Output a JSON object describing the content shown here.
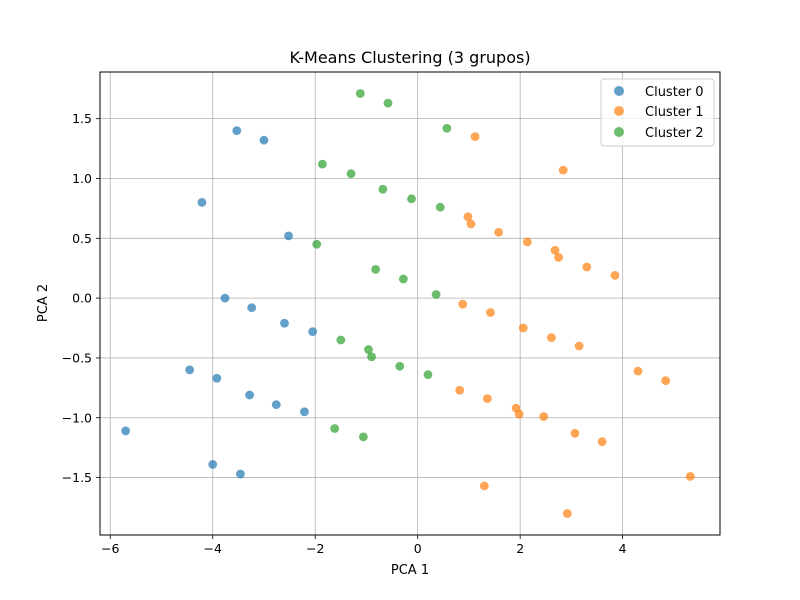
{
  "chart_data": {
    "type": "scatter",
    "title": "K-Means Clustering (3 grupos)",
    "xlabel": "PCA 1",
    "ylabel": "PCA 2",
    "xlim": [
      -6.2,
      5.9
    ],
    "ylim": [
      -1.98,
      1.89
    ],
    "xticks": [
      -6,
      -4,
      -2,
      0,
      2,
      4
    ],
    "yticks": [
      -1.5,
      -1.0,
      -0.5,
      0.0,
      0.5,
      1.0,
      1.5
    ],
    "grid": true,
    "legend_position": "top-right",
    "series": [
      {
        "name": "Cluster 0",
        "color": "#1f77b4",
        "points": [
          [
            -3.53,
            1.4
          ],
          [
            -3.0,
            1.32
          ],
          [
            -4.21,
            0.8
          ],
          [
            -2.52,
            0.52
          ],
          [
            -3.76,
            0.0
          ],
          [
            -3.24,
            -0.08
          ],
          [
            -2.6,
            -0.21
          ],
          [
            -2.05,
            -0.28
          ],
          [
            -4.45,
            -0.6
          ],
          [
            -3.92,
            -0.67
          ],
          [
            -3.28,
            -0.81
          ],
          [
            -2.76,
            -0.89
          ],
          [
            -2.21,
            -0.95
          ],
          [
            -5.7,
            -1.11
          ],
          [
            -4.0,
            -1.39
          ],
          [
            -3.46,
            -1.47
          ]
        ]
      },
      {
        "name": "Cluster 1",
        "color": "#ff7f0e",
        "points": [
          [
            1.12,
            1.35
          ],
          [
            2.84,
            1.07
          ],
          [
            0.98,
            0.68
          ],
          [
            1.04,
            0.62
          ],
          [
            1.58,
            0.55
          ],
          [
            2.14,
            0.47
          ],
          [
            2.68,
            0.4
          ],
          [
            2.75,
            0.34
          ],
          [
            3.3,
            0.26
          ],
          [
            3.85,
            0.19
          ],
          [
            0.88,
            -0.05
          ],
          [
            1.42,
            -0.12
          ],
          [
            2.06,
            -0.25
          ],
          [
            2.61,
            -0.33
          ],
          [
            3.15,
            -0.4
          ],
          [
            4.3,
            -0.61
          ],
          [
            4.84,
            -0.69
          ],
          [
            0.82,
            -0.77
          ],
          [
            1.36,
            -0.84
          ],
          [
            1.92,
            -0.92
          ],
          [
            1.98,
            -0.97
          ],
          [
            2.46,
            -0.99
          ],
          [
            3.07,
            -1.13
          ],
          [
            3.6,
            -1.2
          ],
          [
            5.32,
            -1.49
          ],
          [
            1.3,
            -1.57
          ],
          [
            2.92,
            -1.8
          ]
        ]
      },
      {
        "name": "Cluster 2",
        "color": "#2ca02c",
        "points": [
          [
            -1.12,
            1.71
          ],
          [
            -0.58,
            1.63
          ],
          [
            0.57,
            1.42
          ],
          [
            -1.86,
            1.12
          ],
          [
            -1.3,
            1.04
          ],
          [
            -0.68,
            0.91
          ],
          [
            -0.12,
            0.83
          ],
          [
            0.44,
            0.76
          ],
          [
            -1.97,
            0.45
          ],
          [
            -0.82,
            0.24
          ],
          [
            -0.28,
            0.16
          ],
          [
            0.36,
            0.03
          ],
          [
            -1.5,
            -0.35
          ],
          [
            -0.96,
            -0.43
          ],
          [
            -0.9,
            -0.49
          ],
          [
            -0.35,
            -0.57
          ],
          [
            0.2,
            -0.64
          ],
          [
            -1.62,
            -1.09
          ],
          [
            -1.06,
            -1.16
          ]
        ]
      }
    ]
  }
}
